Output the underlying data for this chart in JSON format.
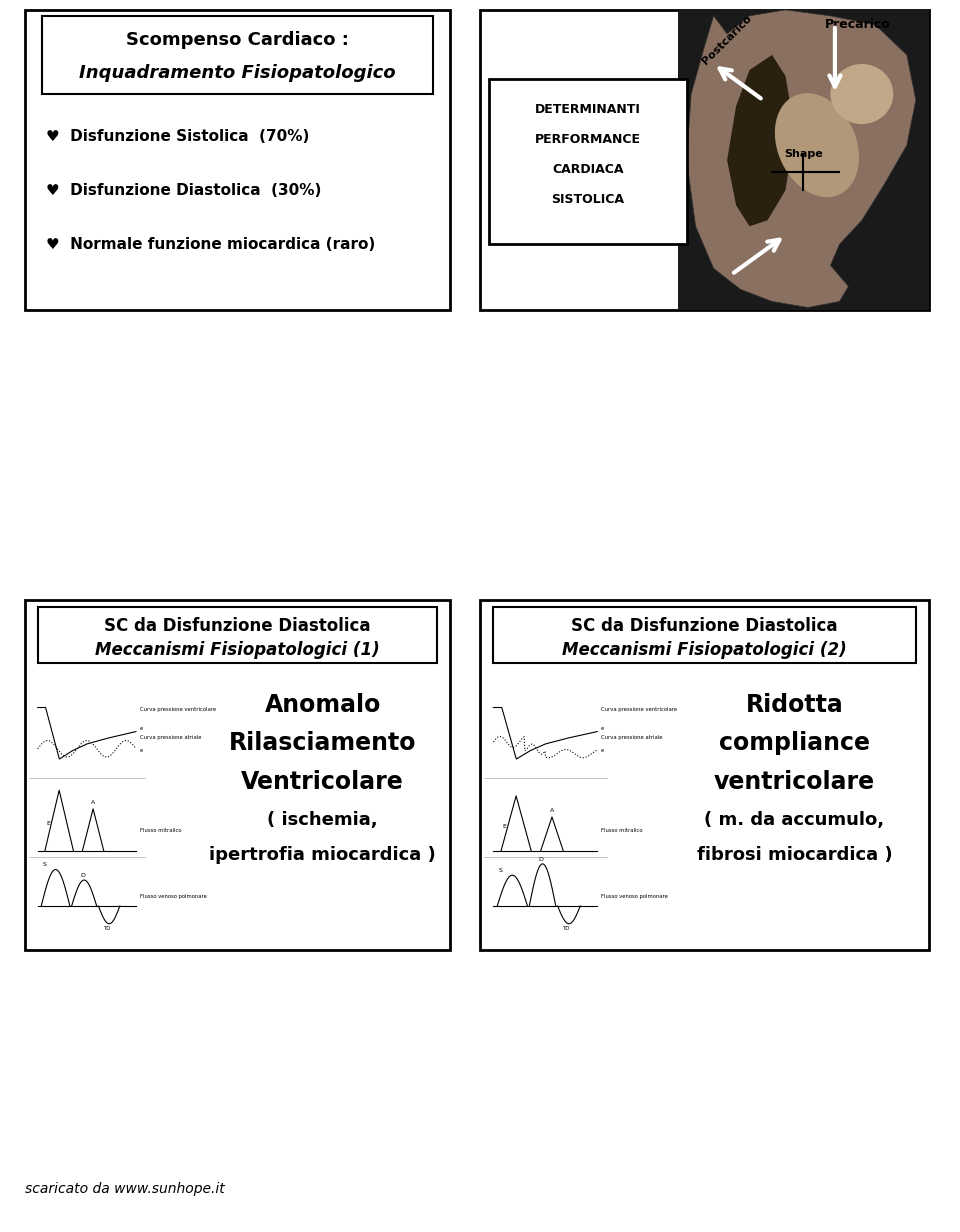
{
  "bg_color": "#ffffff",
  "slide1_title_line1": "Scompenso Cardiaco :",
  "slide1_title_line2": "Inquadramento Fisiopatologico",
  "slide1_items": [
    "♥  Disfunzione Sistolica  (70%)",
    "♥  Disfunzione Diastolica  (30%)",
    "♥  Normale funzione miocardica (raro)"
  ],
  "slide2_label_postcarico": "Postcarico",
  "slide2_label_precarico": "Precarico",
  "slide2_label_shape": "Shape",
  "slide2_det_lines": [
    "DETERMINANTI",
    "PERFORMANCE",
    "CARDIACA",
    "SISTOLICA"
  ],
  "slide3_title_line1": "SC da Disfunzione Diastolica",
  "slide3_title_line2": "Meccanismi Fisiopatologici (1)",
  "slide3_text": "Anomalo\nRilasciamento\nVentricolare\n( ischemia,\nipertrofia miocardica )",
  "slide3_text_lines": [
    "Anomalo",
    "Rilasciamento",
    "Ventricolare",
    "( ischemia,",
    "ipertrofia miocardica )"
  ],
  "slide4_title_line1": "SC da Disfunzione Diastolica",
  "slide4_title_line2": "Meccanismi Fisiopatologici (2)",
  "slide4_text_lines": [
    "Ridotta",
    "compliance",
    "ventricolare",
    "( m. da accumulo,",
    "fibrosi miocardica )"
  ],
  "footer_text": "scaricato da www.sunhope.it",
  "heart_bg": "#c8c8c8",
  "heart_dark": "#404040",
  "heart_mid": "#707070"
}
